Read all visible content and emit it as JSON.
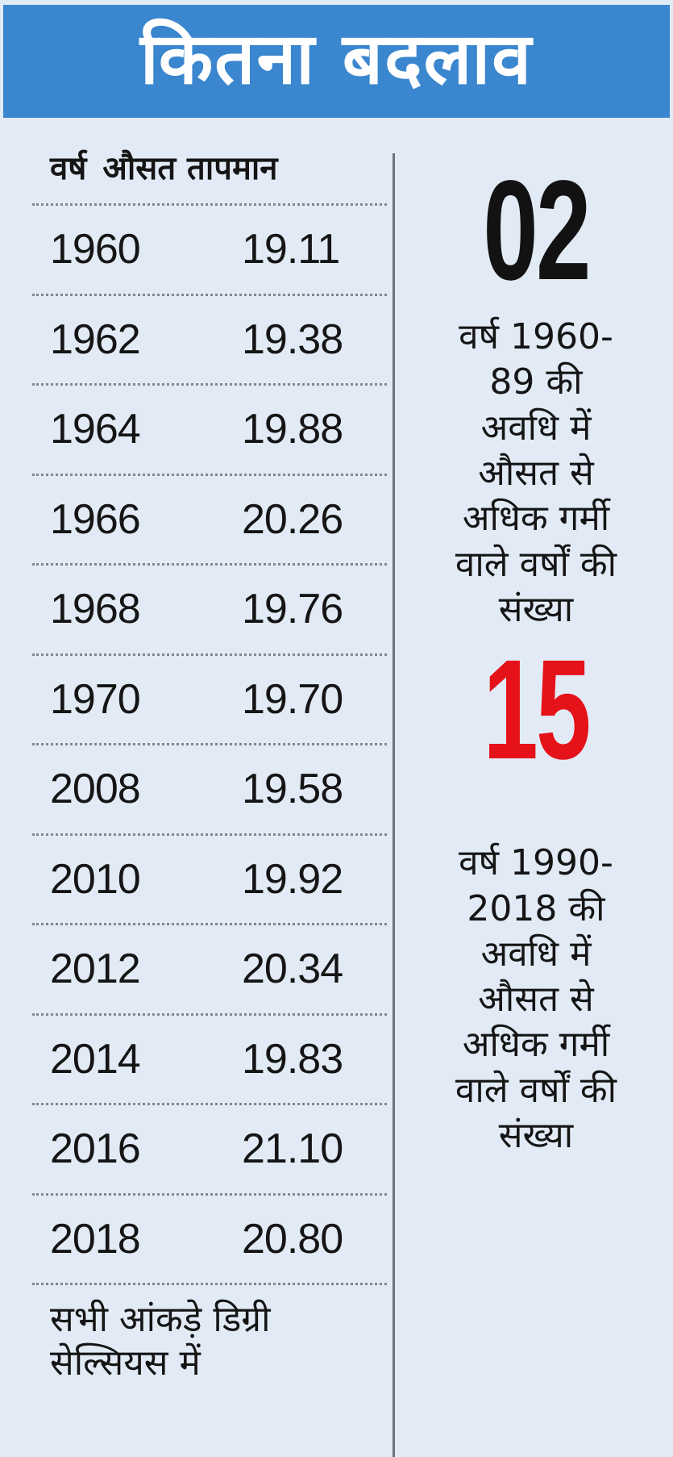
{
  "header": {
    "title": "कितना बदलाव"
  },
  "table": {
    "columns": [
      "वर्ष",
      "औसत तापमान"
    ],
    "rows": [
      {
        "year": "1960",
        "temp": "19.11"
      },
      {
        "year": "1962",
        "temp": "19.38"
      },
      {
        "year": "1964",
        "temp": "19.88"
      },
      {
        "year": "1966",
        "temp": "20.26"
      },
      {
        "year": "1968",
        "temp": "19.76"
      },
      {
        "year": "1970",
        "temp": "19.70"
      },
      {
        "year": "2008",
        "temp": "19.58"
      },
      {
        "year": "2010",
        "temp": "19.92"
      },
      {
        "year": "2012",
        "temp": "20.34"
      },
      {
        "year": "2014",
        "temp": "19.83"
      },
      {
        "year": "2016",
        "temp": "21.10"
      },
      {
        "year": "2018",
        "temp": "20.80"
      }
    ],
    "note_lines": [
      "सभी आंकड़े डिग्री",
      "सेल्सियस में"
    ]
  },
  "stats": [
    {
      "number": "02",
      "color": "#121212",
      "lines": [
        "वर्ष 1960-",
        "89 की",
        "अवधि में",
        "औसत से",
        "अधिक गर्मी",
        "वाले वर्षों की",
        "संख्या"
      ]
    },
    {
      "number": "15",
      "color": "#e5121a",
      "lines": [
        "वर्ष 1990-",
        "2018 की",
        "अवधि में",
        "औसत से",
        "अधिक गर्मी",
        "वाले वर्षों की",
        "संख्या"
      ]
    }
  ],
  "colors": {
    "header_bg": "#3a86cf",
    "page_bg": "#e2ebf5",
    "accent_red": "#e5121a"
  }
}
